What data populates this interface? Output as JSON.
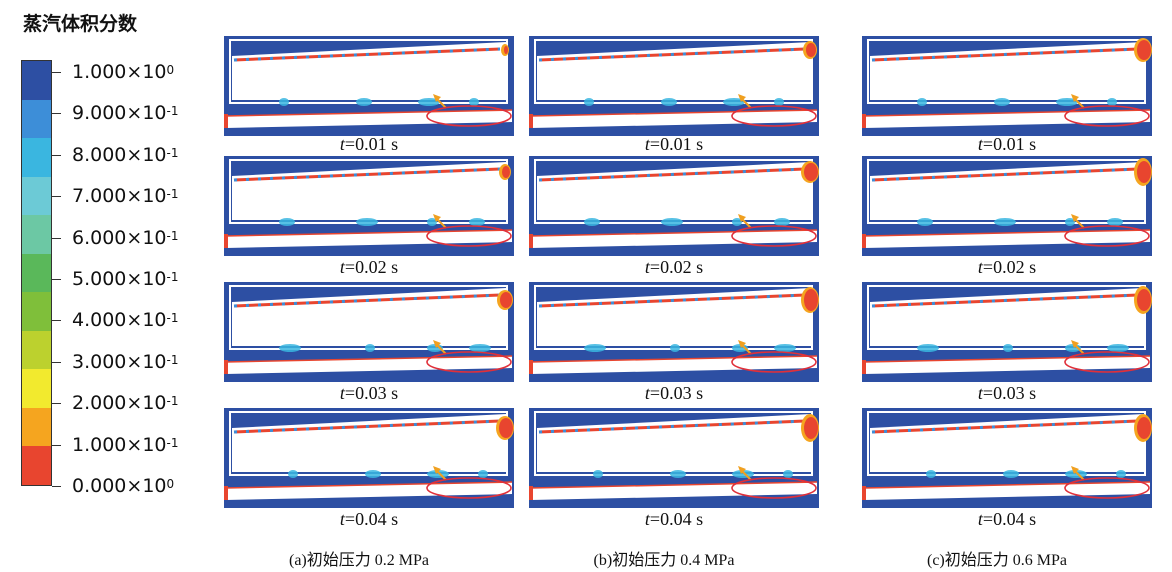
{
  "legend": {
    "title": "蒸汽体积分数",
    "colors": [
      "#2d4fa3",
      "#3d8ed8",
      "#3ab6e0",
      "#6ccad6",
      "#6cc8a4",
      "#5ab85a",
      "#7fbf3a",
      "#bcd12e",
      "#f2ea2e",
      "#f5a51f",
      "#e8452f"
    ],
    "ticks": [
      {
        "mantissa": "1.000×10",
        "exp": "0"
      },
      {
        "mantissa": "9.000×10",
        "exp": "-1"
      },
      {
        "mantissa": "8.000×10",
        "exp": "-1"
      },
      {
        "mantissa": "7.000×10",
        "exp": "-1"
      },
      {
        "mantissa": "6.000×10",
        "exp": "-1"
      },
      {
        "mantissa": "5.000×10",
        "exp": "-1"
      },
      {
        "mantissa": "4.000×10",
        "exp": "-1"
      },
      {
        "mantissa": "3.000×10",
        "exp": "-1"
      },
      {
        "mantissa": "2.000×10",
        "exp": "-1"
      },
      {
        "mantissa": "1.000×10",
        "exp": "-1"
      },
      {
        "mantissa": "0.000×10",
        "exp": "0"
      }
    ]
  },
  "rows": [
    {
      "t_label": "t",
      "time": "=0.01 s"
    },
    {
      "t_label": "t",
      "time": "=0.02 s"
    },
    {
      "t_label": "t",
      "time": "=0.03 s"
    },
    {
      "t_label": "t",
      "time": "=0.04 s"
    }
  ],
  "columns": [
    {
      "caption": "(a)初始压力 0.2 MPa"
    },
    {
      "caption": "(b)初始压力 0.4 MPa"
    },
    {
      "caption": "(c)初始压力 0.6 MPa"
    }
  ],
  "colors": {
    "background": "#2d4fa3",
    "liquid_line": "#e8452f",
    "vapor_mark": "#3d8ed8",
    "highlight_ellipse": "#e0303a",
    "arrow": "#f0a020"
  }
}
